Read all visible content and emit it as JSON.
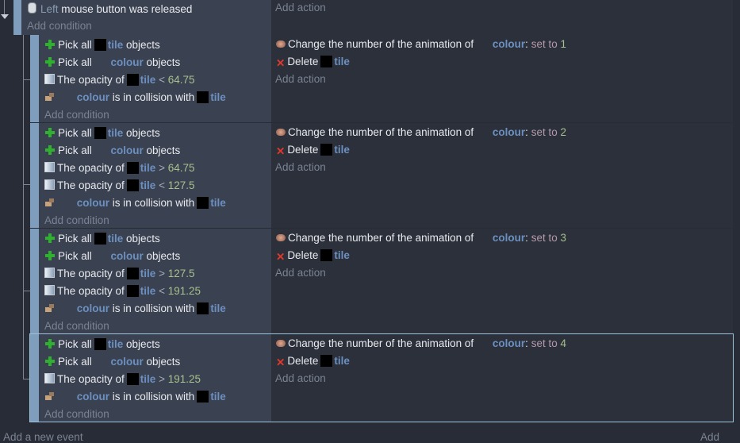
{
  "top_event": {
    "condition": [
      {
        "k": "icon",
        "icon": "mouse-icon"
      },
      {
        "k": "dim",
        "t": "Left"
      },
      {
        "k": "text",
        "t": " mouse button was released"
      }
    ],
    "add_condition": "Add condition",
    "add_action": "Add action"
  },
  "events": [
    {
      "conditions": [
        [
          {
            "k": "icon",
            "icon": "plus-icon"
          },
          {
            "k": "text",
            "t": "Pick all"
          },
          {
            "k": "thumb"
          },
          {
            "k": "obj",
            "t": "tile"
          },
          {
            "k": "text",
            "t": " objects"
          }
        ],
        [
          {
            "k": "icon",
            "icon": "plus-icon"
          },
          {
            "k": "text",
            "t": "Pick all"
          },
          {
            "k": "blank"
          },
          {
            "k": "obj",
            "t": " colour"
          },
          {
            "k": "text",
            "t": " objects"
          }
        ],
        [
          {
            "k": "icon",
            "icon": "opacity-icon"
          },
          {
            "k": "text",
            "t": "The opacity of"
          },
          {
            "k": "thumb"
          },
          {
            "k": "obj",
            "t": "tile"
          },
          {
            "k": "op",
            "t": " < "
          },
          {
            "k": "num",
            "t": "64.75"
          }
        ],
        [
          {
            "k": "icon",
            "icon": "collision-icon"
          },
          {
            "k": "blank"
          },
          {
            "k": "obj",
            "t": " colour"
          },
          {
            "k": "text",
            "t": " is in collision with"
          },
          {
            "k": "thumb"
          },
          {
            "k": "obj",
            "t": "tile"
          }
        ]
      ],
      "actions": [
        [
          {
            "k": "icon",
            "icon": "animation-icon"
          },
          {
            "k": "text",
            "t": "Change the number of the animation of"
          },
          {
            "k": "blank"
          },
          {
            "k": "obj",
            "t": " colour"
          },
          {
            "k": "text",
            "t": ":"
          },
          {
            "k": "param",
            "t": " set to "
          },
          {
            "k": "num",
            "t": "1"
          }
        ],
        [
          {
            "k": "icon",
            "icon": "delete-icon"
          },
          {
            "k": "text",
            "t": "Delete"
          },
          {
            "k": "thumb"
          },
          {
            "k": "obj",
            "t": "tile"
          }
        ]
      ],
      "add_condition": "Add condition",
      "add_action": "Add action",
      "selected": false
    },
    {
      "conditions": [
        [
          {
            "k": "icon",
            "icon": "plus-icon"
          },
          {
            "k": "text",
            "t": "Pick all"
          },
          {
            "k": "thumb"
          },
          {
            "k": "obj",
            "t": "tile"
          },
          {
            "k": "text",
            "t": " objects"
          }
        ],
        [
          {
            "k": "icon",
            "icon": "plus-icon"
          },
          {
            "k": "text",
            "t": "Pick all"
          },
          {
            "k": "blank"
          },
          {
            "k": "obj",
            "t": " colour"
          },
          {
            "k": "text",
            "t": " objects"
          }
        ],
        [
          {
            "k": "icon",
            "icon": "opacity-icon"
          },
          {
            "k": "text",
            "t": "The opacity of"
          },
          {
            "k": "thumb"
          },
          {
            "k": "obj",
            "t": "tile"
          },
          {
            "k": "op",
            "t": " > "
          },
          {
            "k": "num",
            "t": "64.75"
          }
        ],
        [
          {
            "k": "icon",
            "icon": "opacity-icon"
          },
          {
            "k": "text",
            "t": "The opacity of"
          },
          {
            "k": "thumb"
          },
          {
            "k": "obj",
            "t": "tile"
          },
          {
            "k": "op",
            "t": " < "
          },
          {
            "k": "num",
            "t": "127.5"
          }
        ],
        [
          {
            "k": "icon",
            "icon": "collision-icon"
          },
          {
            "k": "blank"
          },
          {
            "k": "obj",
            "t": " colour"
          },
          {
            "k": "text",
            "t": " is in collision with"
          },
          {
            "k": "thumb"
          },
          {
            "k": "obj",
            "t": "tile"
          }
        ]
      ],
      "actions": [
        [
          {
            "k": "icon",
            "icon": "animation-icon"
          },
          {
            "k": "text",
            "t": "Change the number of the animation of"
          },
          {
            "k": "blank"
          },
          {
            "k": "obj",
            "t": " colour"
          },
          {
            "k": "text",
            "t": ":"
          },
          {
            "k": "param",
            "t": " set to "
          },
          {
            "k": "num",
            "t": "2"
          }
        ],
        [
          {
            "k": "icon",
            "icon": "delete-icon"
          },
          {
            "k": "text",
            "t": "Delete"
          },
          {
            "k": "thumb"
          },
          {
            "k": "obj",
            "t": "tile"
          }
        ]
      ],
      "add_condition": "Add condition",
      "add_action": "Add action",
      "selected": false
    },
    {
      "conditions": [
        [
          {
            "k": "icon",
            "icon": "plus-icon"
          },
          {
            "k": "text",
            "t": "Pick all"
          },
          {
            "k": "thumb"
          },
          {
            "k": "obj",
            "t": "tile"
          },
          {
            "k": "text",
            "t": " objects"
          }
        ],
        [
          {
            "k": "icon",
            "icon": "plus-icon"
          },
          {
            "k": "text",
            "t": "Pick all"
          },
          {
            "k": "blank"
          },
          {
            "k": "obj",
            "t": " colour"
          },
          {
            "k": "text",
            "t": " objects"
          }
        ],
        [
          {
            "k": "icon",
            "icon": "opacity-icon"
          },
          {
            "k": "text",
            "t": "The opacity of"
          },
          {
            "k": "thumb"
          },
          {
            "k": "obj",
            "t": "tile"
          },
          {
            "k": "op",
            "t": " > "
          },
          {
            "k": "num",
            "t": "127.5"
          }
        ],
        [
          {
            "k": "icon",
            "icon": "opacity-icon"
          },
          {
            "k": "text",
            "t": "The opacity of"
          },
          {
            "k": "thumb"
          },
          {
            "k": "obj",
            "t": "tile"
          },
          {
            "k": "op",
            "t": " < "
          },
          {
            "k": "num",
            "t": "191.25"
          }
        ],
        [
          {
            "k": "icon",
            "icon": "collision-icon"
          },
          {
            "k": "blank"
          },
          {
            "k": "obj",
            "t": " colour"
          },
          {
            "k": "text",
            "t": " is in collision with"
          },
          {
            "k": "thumb"
          },
          {
            "k": "obj",
            "t": "tile"
          }
        ]
      ],
      "actions": [
        [
          {
            "k": "icon",
            "icon": "animation-icon"
          },
          {
            "k": "text",
            "t": "Change the number of the animation of"
          },
          {
            "k": "blank"
          },
          {
            "k": "obj",
            "t": " colour"
          },
          {
            "k": "text",
            "t": ":"
          },
          {
            "k": "param",
            "t": " set to "
          },
          {
            "k": "num",
            "t": "3"
          }
        ],
        [
          {
            "k": "icon",
            "icon": "delete-icon"
          },
          {
            "k": "text",
            "t": "Delete"
          },
          {
            "k": "thumb"
          },
          {
            "k": "obj",
            "t": "tile"
          }
        ]
      ],
      "add_condition": "Add condition",
      "add_action": "Add action",
      "selected": false
    },
    {
      "conditions": [
        [
          {
            "k": "icon",
            "icon": "plus-icon"
          },
          {
            "k": "text",
            "t": "Pick all"
          },
          {
            "k": "thumb"
          },
          {
            "k": "obj",
            "t": "tile"
          },
          {
            "k": "text",
            "t": " objects"
          }
        ],
        [
          {
            "k": "icon",
            "icon": "plus-icon"
          },
          {
            "k": "text",
            "t": "Pick all"
          },
          {
            "k": "blank"
          },
          {
            "k": "obj",
            "t": " colour"
          },
          {
            "k": "text",
            "t": " objects"
          }
        ],
        [
          {
            "k": "icon",
            "icon": "opacity-icon"
          },
          {
            "k": "text",
            "t": "The opacity of"
          },
          {
            "k": "thumb"
          },
          {
            "k": "obj",
            "t": "tile"
          },
          {
            "k": "op",
            "t": " > "
          },
          {
            "k": "num",
            "t": "191.25"
          }
        ],
        [
          {
            "k": "icon",
            "icon": "collision-icon"
          },
          {
            "k": "blank"
          },
          {
            "k": "obj",
            "t": " colour"
          },
          {
            "k": "text",
            "t": " is in collision with"
          },
          {
            "k": "thumb"
          },
          {
            "k": "obj",
            "t": "tile"
          }
        ]
      ],
      "actions": [
        [
          {
            "k": "icon",
            "icon": "animation-icon"
          },
          {
            "k": "text",
            "t": "Change the number of the animation of"
          },
          {
            "k": "blank"
          },
          {
            "k": "obj",
            "t": " colour"
          },
          {
            "k": "text",
            "t": ":"
          },
          {
            "k": "param",
            "t": " set to "
          },
          {
            "k": "num",
            "t": "4"
          }
        ],
        [
          {
            "k": "icon",
            "icon": "delete-icon"
          },
          {
            "k": "text",
            "t": "Delete"
          },
          {
            "k": "thumb"
          },
          {
            "k": "obj",
            "t": "tile"
          }
        ]
      ],
      "add_condition": "Add condition",
      "add_action": "Add action",
      "selected": true
    }
  ],
  "footer": {
    "add_event": "Add a new event",
    "add": "Add"
  },
  "colors": {
    "background": "#282c36",
    "condition_panel": "#3a4150",
    "event_bar": "#7f9dbd",
    "object_name": "#6c90c0",
    "number": "#a8c08e",
    "selection_outline": "#9cc2dc"
  }
}
